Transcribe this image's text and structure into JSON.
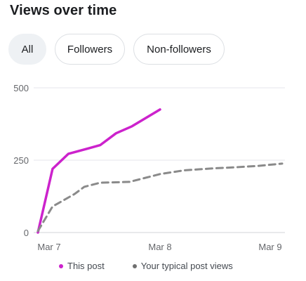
{
  "header": {
    "title": "Views over time"
  },
  "filters": {
    "items": [
      {
        "label": "All",
        "selected": true
      },
      {
        "label": "Followers",
        "selected": false
      },
      {
        "label": "Non-followers",
        "selected": false
      }
    ]
  },
  "colors": {
    "this_post": "#cc22cc",
    "typical": "#8a8a8a",
    "grid": "#e4e6eb",
    "axis": "#d0d3d7"
  },
  "chart_data": {
    "type": "line",
    "title": "",
    "xlabel": "",
    "ylabel": "",
    "x_ticks": [
      {
        "label": "Mar 7",
        "value": 0
      },
      {
        "label": "Mar 8",
        "value": 1
      },
      {
        "label": "Mar 9",
        "value": 2
      }
    ],
    "y_ticks": [
      0,
      250,
      500
    ],
    "ylim": [
      0,
      500
    ],
    "xlim": [
      0,
      2
    ],
    "grid": true,
    "legend_position": "bottom",
    "series": [
      {
        "name": "This post",
        "style": "solid",
        "color": "#cc22cc",
        "points": [
          {
            "x": 0.0,
            "y": 0
          },
          {
            "x": 0.12,
            "y": 220
          },
          {
            "x": 0.25,
            "y": 272
          },
          {
            "x": 0.38,
            "y": 287
          },
          {
            "x": 0.51,
            "y": 302
          },
          {
            "x": 0.64,
            "y": 343
          },
          {
            "x": 0.77,
            "y": 367
          },
          {
            "x": 1.0,
            "y": 425
          }
        ]
      },
      {
        "name": "Your typical post views",
        "style": "dashed",
        "color": "#8a8a8a",
        "points": [
          {
            "x": 0.0,
            "y": 5
          },
          {
            "x": 0.12,
            "y": 90
          },
          {
            "x": 0.3,
            "y": 133
          },
          {
            "x": 0.38,
            "y": 158
          },
          {
            "x": 0.51,
            "y": 172
          },
          {
            "x": 0.75,
            "y": 175
          },
          {
            "x": 1.0,
            "y": 202
          },
          {
            "x": 1.2,
            "y": 215
          },
          {
            "x": 1.45,
            "y": 222
          },
          {
            "x": 1.6,
            "y": 225
          },
          {
            "x": 1.8,
            "y": 230
          },
          {
            "x": 2.0,
            "y": 238
          }
        ]
      }
    ]
  }
}
